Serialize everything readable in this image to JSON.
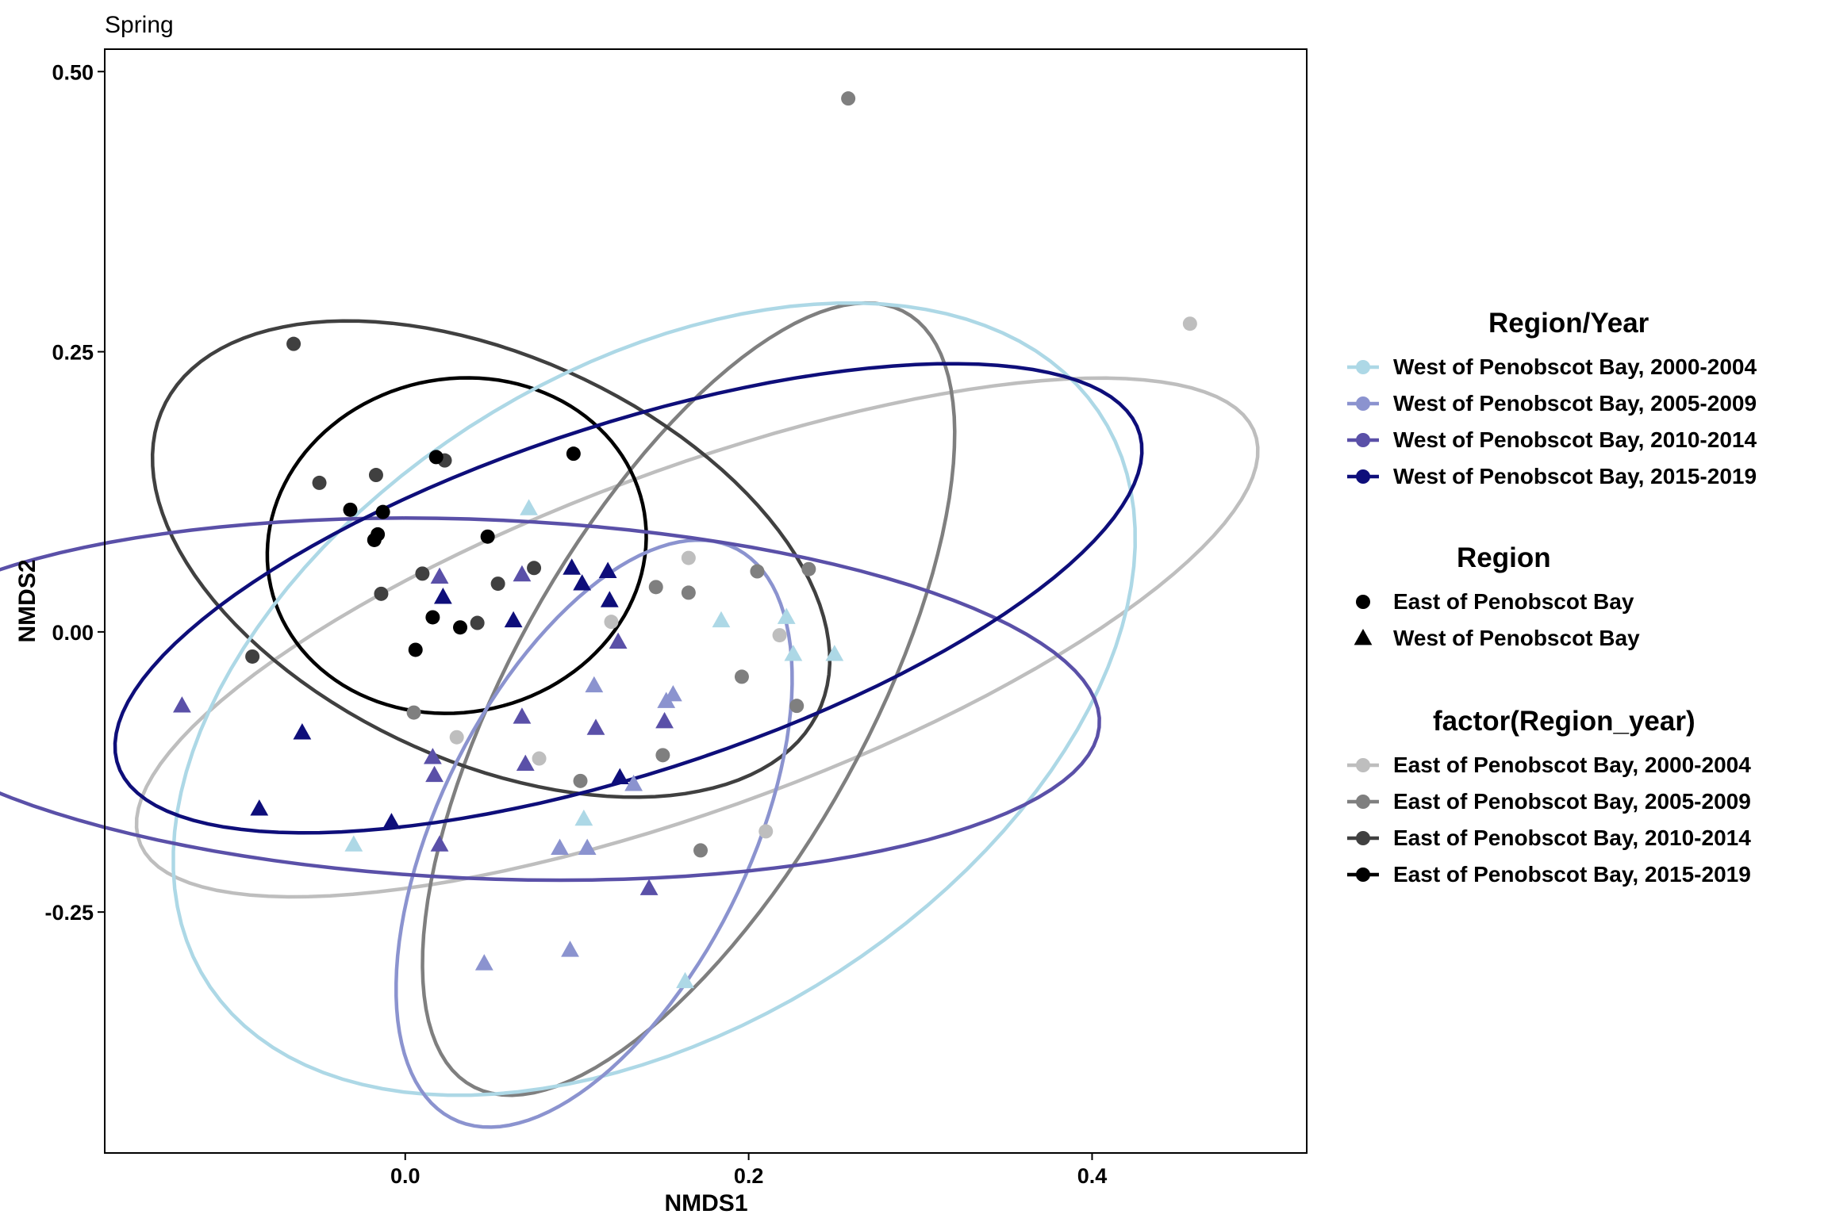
{
  "chart_data": {
    "type": "scatter",
    "title": "Spring",
    "xlabel": "NMDS1",
    "ylabel": "NMDS2",
    "xlim": [
      -0.175,
      0.525
    ],
    "ylim": [
      -0.465,
      0.52
    ],
    "x_ticks": [
      0.0,
      0.2,
      0.4
    ],
    "x_tick_labels": [
      "0.0",
      "0.2",
      "0.4"
    ],
    "y_ticks": [
      0.5,
      0.25,
      0.0,
      -0.25
    ],
    "y_tick_labels": [
      "0.50",
      "0.25",
      "0.00",
      "-0.25"
    ],
    "grid": false,
    "legend_position": "right",
    "legends": [
      {
        "title": "Region/Year",
        "kind": "line",
        "entries": [
          {
            "label": "West of Penobscot Bay, 2000-2004",
            "color": "#ADD8E6"
          },
          {
            "label": "West of Penobscot Bay, 2005-2009",
            "color": "#8B93CF"
          },
          {
            "label": "West of Penobscot Bay, 2010-2014",
            "color": "#5A50A8"
          },
          {
            "label": "West of Penobscot Bay, 2015-2019",
            "color": "#0E0E7A"
          }
        ]
      },
      {
        "title": "Region",
        "kind": "shape",
        "entries": [
          {
            "label": "East of Penobscot Bay",
            "shape": "circle",
            "color": "#000000"
          },
          {
            "label": "West of Penobscot Bay",
            "shape": "triangle",
            "color": "#000000"
          }
        ]
      },
      {
        "title": "factor(Region_year)",
        "kind": "line",
        "entries": [
          {
            "label": "East of Penobscot Bay, 2000-2004",
            "color": "#BEBEBE"
          },
          {
            "label": "East of Penobscot Bay, 2005-2009",
            "color": "#7F7F7F"
          },
          {
            "label": "East of Penobscot Bay, 2010-2014",
            "color": "#404040"
          },
          {
            "label": "East of Penobscot Bay, 2015-2019",
            "color": "#000000"
          }
        ]
      }
    ],
    "series": [
      {
        "name": "East of Penobscot Bay, 2000-2004",
        "shape": "circle",
        "color": "#BEBEBE",
        "points": [
          [
            0.457,
            0.275
          ],
          [
            0.165,
            0.066
          ],
          [
            0.12,
            0.009
          ],
          [
            0.218,
            -0.003
          ],
          [
            0.21,
            -0.178
          ],
          [
            0.03,
            -0.094
          ],
          [
            0.078,
            -0.113
          ]
        ],
        "ellipse": {
          "center": [
            0.17,
            -0.005
          ],
          "rx": 0.375,
          "ry": 0.14,
          "angle_deg": 32
        }
      },
      {
        "name": "East of Penobscot Bay, 2005-2009",
        "shape": "circle",
        "color": "#7F7F7F",
        "points": [
          [
            0.258,
            0.476
          ],
          [
            0.205,
            0.054
          ],
          [
            0.235,
            0.056
          ],
          [
            0.146,
            0.04
          ],
          [
            0.165,
            0.035
          ],
          [
            0.196,
            -0.04
          ],
          [
            0.228,
            -0.066
          ],
          [
            0.15,
            -0.11
          ],
          [
            0.102,
            -0.133
          ],
          [
            0.172,
            -0.195
          ],
          [
            0.005,
            -0.072
          ]
        ],
        "ellipse": {
          "center": [
            0.165,
            -0.06
          ],
          "rx": 0.37,
          "ry": 0.11,
          "angle_deg": 72
        }
      },
      {
        "name": "East of Penobscot Bay, 2010-2014",
        "shape": "circle",
        "color": "#404040",
        "points": [
          [
            -0.065,
            0.257
          ],
          [
            -0.05,
            0.133
          ],
          [
            -0.017,
            0.14
          ],
          [
            0.023,
            0.153
          ],
          [
            0.075,
            0.057
          ],
          [
            0.01,
            0.052
          ],
          [
            -0.014,
            0.034
          ],
          [
            0.054,
            0.043
          ],
          [
            0.042,
            0.008
          ],
          [
            -0.089,
            -0.022
          ]
        ],
        "ellipse": {
          "center": [
            0.05,
            0.065
          ],
          "rx": 0.245,
          "ry": 0.155,
          "angle_deg": -50
        }
      },
      {
        "name": "East of Penobscot Bay, 2015-2019",
        "shape": "circle",
        "color": "#000000",
        "points": [
          [
            0.018,
            0.156
          ],
          [
            0.098,
            0.159
          ],
          [
            -0.032,
            0.109
          ],
          [
            -0.013,
            0.107
          ],
          [
            -0.018,
            0.082
          ],
          [
            -0.016,
            0.087
          ],
          [
            0.048,
            0.085
          ],
          [
            0.016,
            0.013
          ],
          [
            0.032,
            0.004
          ],
          [
            0.006,
            -0.016
          ]
        ],
        "ellipse": {
          "center": [
            0.03,
            0.077
          ],
          "rx": 0.15,
          "ry": 0.11,
          "angle_deg": 85
        }
      },
      {
        "name": "West of Penobscot Bay, 2000-2004",
        "shape": "triangle",
        "color": "#ADD8E6",
        "points": [
          [
            0.072,
            0.11
          ],
          [
            0.184,
            0.01
          ],
          [
            0.25,
            -0.02
          ],
          [
            0.226,
            -0.02
          ],
          [
            0.222,
            0.013
          ],
          [
            -0.03,
            -0.19
          ],
          [
            0.104,
            -0.167
          ],
          [
            0.163,
            -0.312
          ]
        ],
        "ellipse": {
          "center": [
            0.145,
            -0.06
          ],
          "rx": 0.385,
          "ry": 0.235,
          "angle_deg": 60
        }
      },
      {
        "name": "West of Penobscot Bay, 2005-2009",
        "shape": "triangle",
        "color": "#8B93CF",
        "points": [
          [
            0.11,
            -0.048
          ],
          [
            0.156,
            -0.056
          ],
          [
            0.152,
            -0.062
          ],
          [
            0.09,
            -0.193
          ],
          [
            0.106,
            -0.193
          ],
          [
            0.046,
            -0.296
          ],
          [
            0.096,
            -0.284
          ],
          [
            0.133,
            -0.136
          ]
        ],
        "ellipse": {
          "center": [
            0.11,
            -0.18
          ],
          "rx": 0.27,
          "ry": 0.095,
          "angle_deg": 75
        }
      },
      {
        "name": "West of Penobscot Bay, 2010-2014",
        "shape": "triangle",
        "color": "#5A50A8",
        "points": [
          [
            -0.13,
            -0.066
          ],
          [
            0.02,
            0.049
          ],
          [
            0.068,
            0.051
          ],
          [
            0.068,
            -0.076
          ],
          [
            0.07,
            -0.118
          ],
          [
            0.016,
            -0.112
          ],
          [
            0.017,
            -0.128
          ],
          [
            0.02,
            -0.19
          ],
          [
            0.111,
            -0.086
          ],
          [
            0.151,
            -0.08
          ],
          [
            0.142,
            -0.229
          ],
          [
            0.124,
            -0.009
          ]
        ],
        "ellipse": {
          "center": [
            0.045,
            -0.06
          ],
          "rx": 0.36,
          "ry": 0.16,
          "angle_deg": -4
        }
      },
      {
        "name": "West of Penobscot Bay, 2015-2019",
        "shape": "triangle",
        "color": "#0E0E7A",
        "points": [
          [
            0.097,
            0.057
          ],
          [
            0.103,
            0.043
          ],
          [
            0.118,
            0.054
          ],
          [
            0.119,
            0.028
          ],
          [
            0.063,
            0.01
          ],
          [
            0.022,
            0.031
          ],
          [
            -0.06,
            -0.09
          ],
          [
            -0.085,
            -0.158
          ],
          [
            -0.008,
            -0.17
          ],
          [
            0.125,
            -0.13
          ]
        ],
        "ellipse": {
          "center": [
            0.13,
            0.03
          ],
          "rx": 0.335,
          "ry": 0.145,
          "angle_deg": 30
        }
      }
    ]
  }
}
